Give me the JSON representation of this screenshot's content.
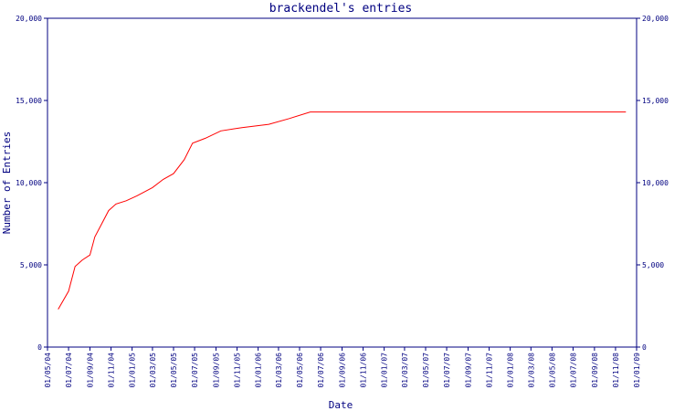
{
  "chart_data": {
    "type": "line",
    "title": "brackendel's entries",
    "xlabel": "Date",
    "ylabel": "Number of Entries",
    "ylim": [
      0,
      20000
    ],
    "xlim": [
      "2004-05-01",
      "2009-01-01"
    ],
    "grid": false,
    "legend": "none",
    "y_ticks": [
      0,
      5000,
      10000,
      15000,
      20000
    ],
    "y_tick_labels": [
      "0",
      "5,000",
      "10,000",
      "15,000",
      "20,000"
    ],
    "x_tick_labels": [
      "01/05/04",
      "01/07/04",
      "01/09/04",
      "01/11/04",
      "01/01/05",
      "01/03/05",
      "01/05/05",
      "01/07/05",
      "01/09/05",
      "01/11/05",
      "01/01/06",
      "01/03/06",
      "01/05/06",
      "01/07/06",
      "01/09/06",
      "01/11/06",
      "01/01/07",
      "01/03/07",
      "01/05/07",
      "01/07/07",
      "01/09/07",
      "01/11/07",
      "01/01/08",
      "01/03/08",
      "01/05/08",
      "01/07/08",
      "01/09/08",
      "01/11/08",
      "01/01/09"
    ],
    "series": [
      {
        "color": "#ff0000",
        "points": [
          [
            "2004-06-01",
            2300
          ],
          [
            "2004-07-01",
            3400
          ],
          [
            "2004-07-20",
            4900
          ],
          [
            "2004-08-10",
            5300
          ],
          [
            "2004-09-01",
            5600
          ],
          [
            "2004-09-15",
            6700
          ],
          [
            "2004-10-05",
            7500
          ],
          [
            "2004-10-25",
            8300
          ],
          [
            "2004-11-15",
            8700
          ],
          [
            "2004-12-15",
            8900
          ],
          [
            "2005-01-15",
            9200
          ],
          [
            "2005-03-01",
            9700
          ],
          [
            "2005-04-01",
            10200
          ],
          [
            "2005-05-01",
            10550
          ],
          [
            "2005-06-01",
            11400
          ],
          [
            "2005-06-25",
            12400
          ],
          [
            "2005-08-01",
            12700
          ],
          [
            "2005-09-15",
            13150
          ],
          [
            "2005-11-15",
            13350
          ],
          [
            "2006-02-01",
            13550
          ],
          [
            "2006-04-01",
            13900
          ],
          [
            "2006-06-01",
            14300
          ],
          [
            "2008-12-01",
            14300
          ]
        ]
      }
    ]
  }
}
